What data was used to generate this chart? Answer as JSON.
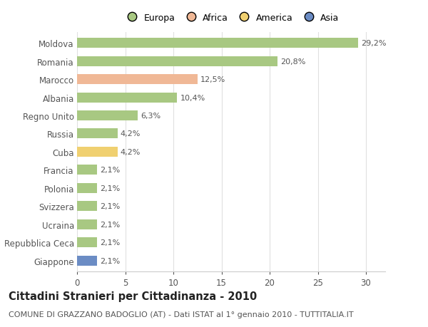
{
  "countries": [
    "Moldova",
    "Romania",
    "Marocco",
    "Albania",
    "Regno Unito",
    "Russia",
    "Cuba",
    "Francia",
    "Polonia",
    "Svizzera",
    "Ucraina",
    "Repubblica Ceca",
    "Giappone"
  ],
  "values": [
    29.2,
    20.8,
    12.5,
    10.4,
    6.3,
    4.2,
    4.2,
    2.1,
    2.1,
    2.1,
    2.1,
    2.1,
    2.1
  ],
  "labels": [
    "29,2%",
    "20,8%",
    "12,5%",
    "10,4%",
    "6,3%",
    "4,2%",
    "4,2%",
    "2,1%",
    "2,1%",
    "2,1%",
    "2,1%",
    "2,1%",
    "2,1%"
  ],
  "colors": [
    "#a8c882",
    "#a8c882",
    "#f0b896",
    "#a8c882",
    "#a8c882",
    "#a8c882",
    "#f0d070",
    "#a8c882",
    "#a8c882",
    "#a8c882",
    "#a8c882",
    "#a8c882",
    "#6b8cc4"
  ],
  "legend_labels": [
    "Europa",
    "Africa",
    "America",
    "Asia"
  ],
  "legend_colors": [
    "#a8c882",
    "#f0b896",
    "#f0d070",
    "#6b8cc4"
  ],
  "title": "Cittadini Stranieri per Cittadinanza - 2010",
  "subtitle": "COMUNE DI GRAZZANO BADOGLIO (AT) - Dati ISTAT al 1° gennaio 2010 - TUTTITALIA.IT",
  "xlim": [
    0,
    32
  ],
  "xticks": [
    0,
    5,
    10,
    15,
    20,
    25,
    30
  ],
  "background_color": "#ffffff",
  "grid_color": "#e0e0e0",
  "bar_height": 0.55,
  "title_fontsize": 10.5,
  "subtitle_fontsize": 8,
  "label_fontsize": 8,
  "tick_fontsize": 8.5,
  "legend_fontsize": 9
}
